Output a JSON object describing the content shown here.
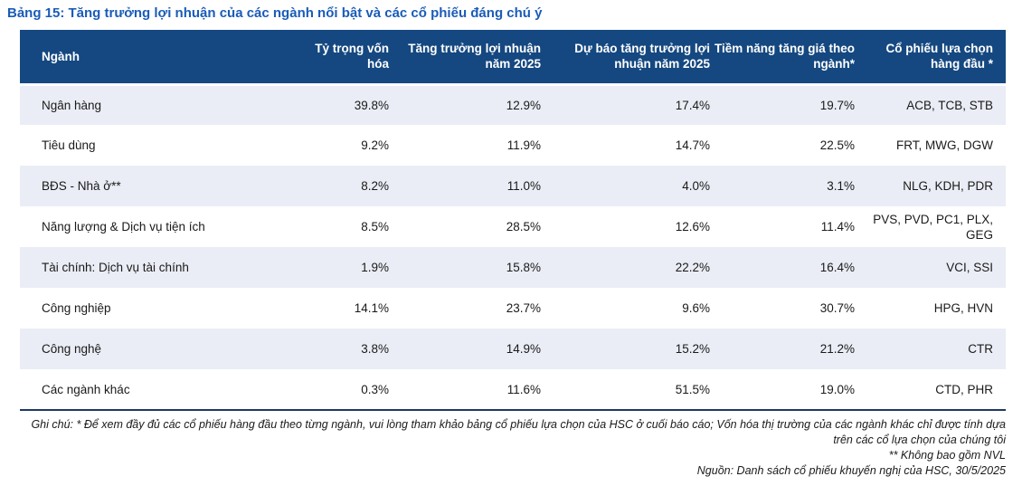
{
  "title": "Bảng 15: Tăng trưởng lợi nhuận của các ngành nổi bật và các cổ phiếu đáng chú ý",
  "table": {
    "columns": [
      "Ngành",
      "Tỷ trọng vốn hóa",
      "Tăng trưởng lợi nhuận năm 2025",
      "Dự báo tăng trưởng lợi nhuận năm 2025",
      "Tiềm năng tăng giá theo ngành*",
      "Cổ phiếu lựa chọn hàng đầu *"
    ],
    "row_keys": [
      "sector",
      "market_cap_weight",
      "profit_growth_2025",
      "forecast_profit_growth_2025",
      "sector_upside",
      "top_picks"
    ],
    "rows": [
      {
        "sector": "Ngân hàng",
        "market_cap_weight": "39.8%",
        "profit_growth_2025": "12.9%",
        "forecast_profit_growth_2025": "17.4%",
        "sector_upside": "19.7%",
        "top_picks": "ACB, TCB, STB"
      },
      {
        "sector": "Tiêu dùng",
        "market_cap_weight": "9.2%",
        "profit_growth_2025": "11.9%",
        "forecast_profit_growth_2025": "14.7%",
        "sector_upside": "22.5%",
        "top_picks": "FRT, MWG, DGW"
      },
      {
        "sector": "BĐS - Nhà ở**",
        "market_cap_weight": "8.2%",
        "profit_growth_2025": "11.0%",
        "forecast_profit_growth_2025": "4.0%",
        "sector_upside": "3.1%",
        "top_picks": "NLG, KDH, PDR"
      },
      {
        "sector": "Năng lượng & Dịch vụ tiện ích",
        "market_cap_weight": "8.5%",
        "profit_growth_2025": "28.5%",
        "forecast_profit_growth_2025": "12.6%",
        "sector_upside": "11.4%",
        "top_picks": "PVS, PVD, PC1, PLX, GEG"
      },
      {
        "sector": "Tài chính: Dịch vụ tài chính",
        "market_cap_weight": "1.9%",
        "profit_growth_2025": "15.8%",
        "forecast_profit_growth_2025": "22.2%",
        "sector_upside": "16.4%",
        "top_picks": "VCI, SSI"
      },
      {
        "sector": "Công nghiệp",
        "market_cap_weight": "14.1%",
        "profit_growth_2025": "23.7%",
        "forecast_profit_growth_2025": "9.6%",
        "sector_upside": "30.7%",
        "top_picks": "HPG, HVN"
      },
      {
        "sector": "Công nghệ",
        "market_cap_weight": "3.8%",
        "profit_growth_2025": "14.9%",
        "forecast_profit_growth_2025": "15.2%",
        "sector_upside": "21.2%",
        "top_picks": "CTR"
      },
      {
        "sector": "Các ngành khác",
        "market_cap_weight": "0.3%",
        "profit_growth_2025": "11.6%",
        "forecast_profit_growth_2025": "51.5%",
        "sector_upside": "19.0%",
        "top_picks": "CTD, PHR"
      }
    ]
  },
  "notes": [
    "Ghi chú: * Để xem đầy đủ các cổ phiếu hàng đầu theo từng ngành, vui lòng tham khảo bảng cổ phiếu lựa chọn của HSC ở cuối báo cáo; Vốn hóa thị trường của các ngành khác chỉ được tính dựa trên các cổ lựa chọn của chúng tôi",
    "** Không bao gồm NVL",
    "Nguồn: Danh sách cổ phiếu khuyến nghị của HSC, 30/5/2025"
  ],
  "colors": {
    "header_bg": "#154880",
    "stripe_bg": "#EAEDF5",
    "title_color": "#1A5CB8",
    "border_color": "#1F3864"
  }
}
